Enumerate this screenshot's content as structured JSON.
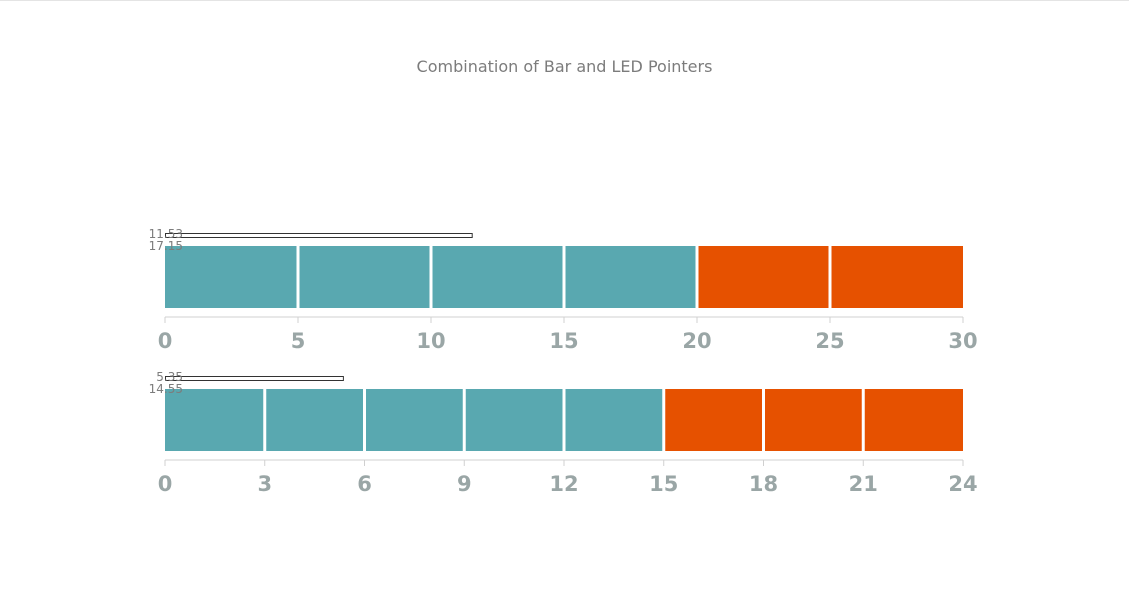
{
  "chart_data": {
    "type": "linear-gauge",
    "title": "Combination of Bar and LED Pointers",
    "colors": {
      "led_low": "#59a8b0",
      "led_high": "#e65100",
      "axis": "#d0d0d0",
      "tick_text": "#9aa6a6"
    },
    "gauges": [
      {
        "min": 0,
        "max": 30,
        "ticks": [
          0,
          5,
          10,
          15,
          20,
          25,
          30
        ],
        "led_ranges": [
          {
            "from": 0,
            "to": 20,
            "color": "#59a8b0"
          },
          {
            "from": 20,
            "to": 30,
            "color": "#e65100"
          }
        ],
        "led_segment_step": 5,
        "bar_pointer_value": 11.53,
        "value_labels": [
          "11.53",
          "17.15"
        ]
      },
      {
        "min": 0,
        "max": 24,
        "ticks": [
          0,
          3,
          6,
          9,
          12,
          15,
          18,
          21,
          24
        ],
        "led_ranges": [
          {
            "from": 0,
            "to": 15,
            "color": "#59a8b0"
          },
          {
            "from": 15,
            "to": 24,
            "color": "#e65100"
          }
        ],
        "led_segment_step": 3,
        "bar_pointer_value": 5.35,
        "value_labels": [
          "5.35",
          "14.55"
        ]
      }
    ]
  }
}
